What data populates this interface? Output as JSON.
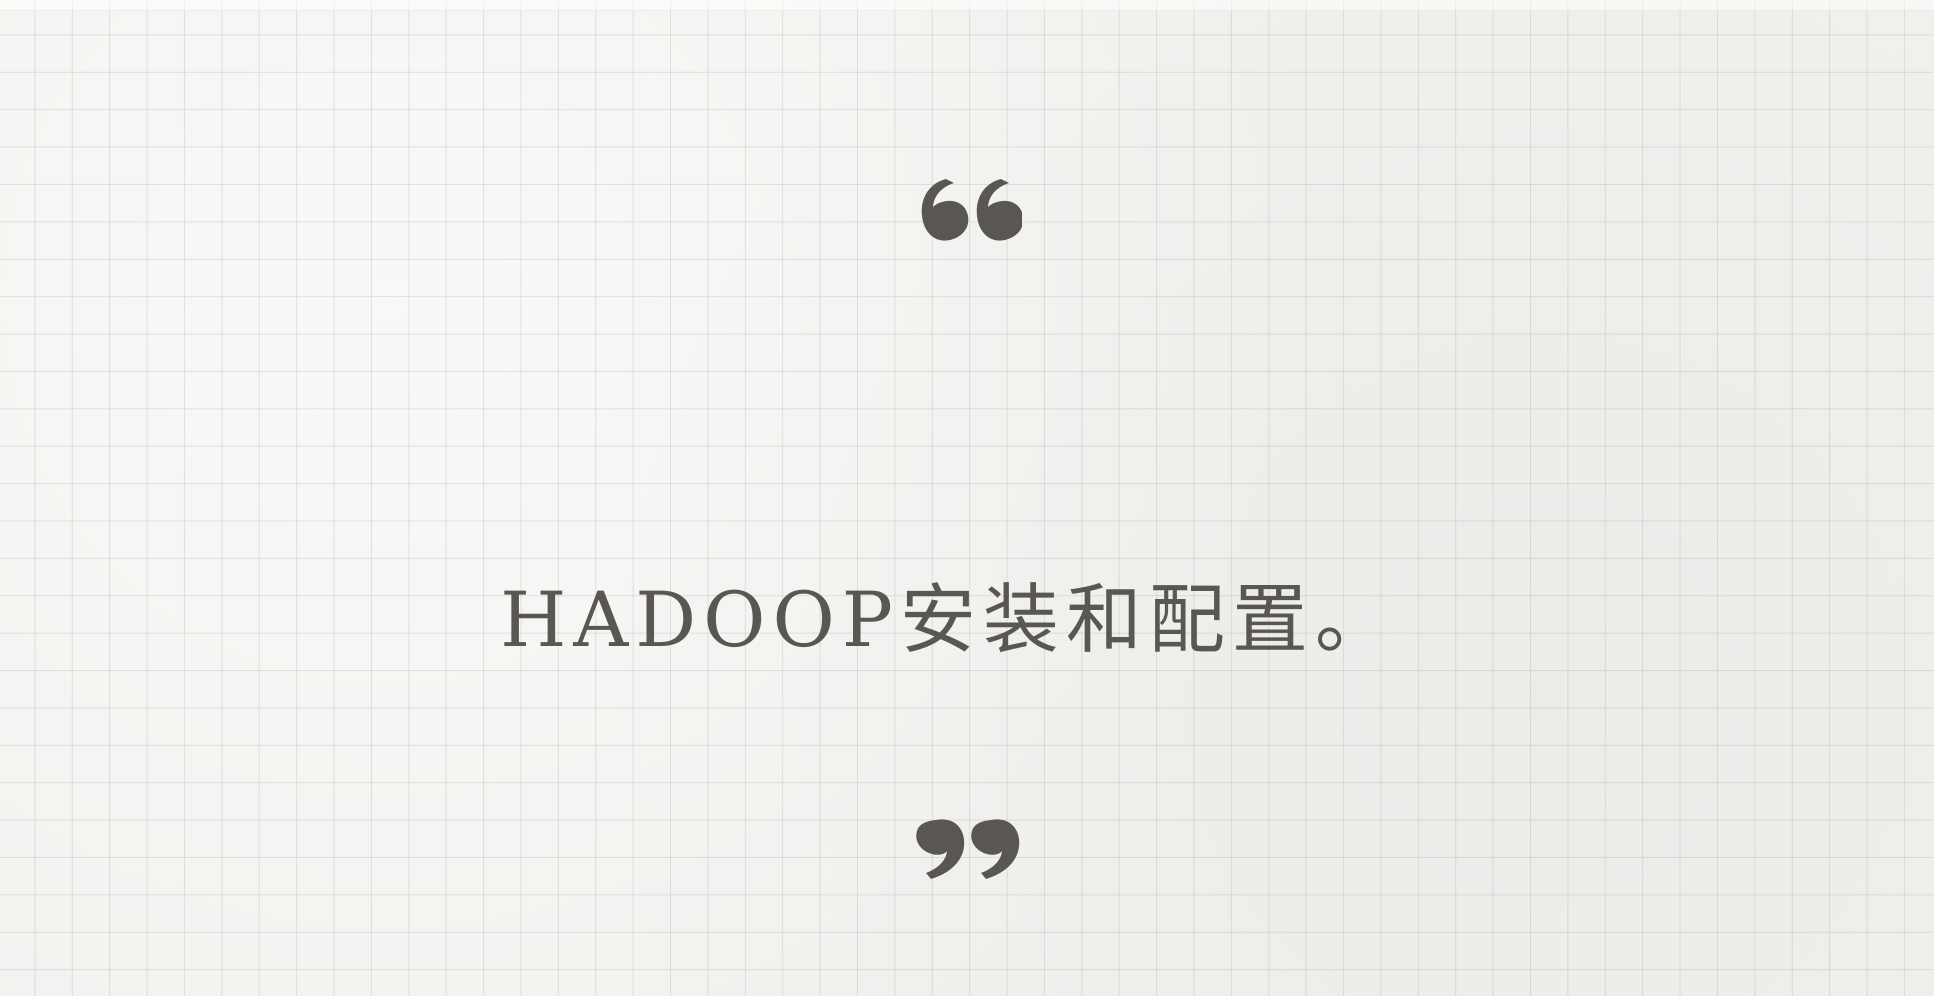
{
  "slide": {
    "title": "HADOOP安装和配置。"
  },
  "decor": {
    "open_quote_icon": "open-quote-icon",
    "close_quote_icon": "close-quote-icon"
  },
  "colors": {
    "background": "#f1f1ee",
    "ink": "#5a5753",
    "grid": "#d6d6d1"
  }
}
